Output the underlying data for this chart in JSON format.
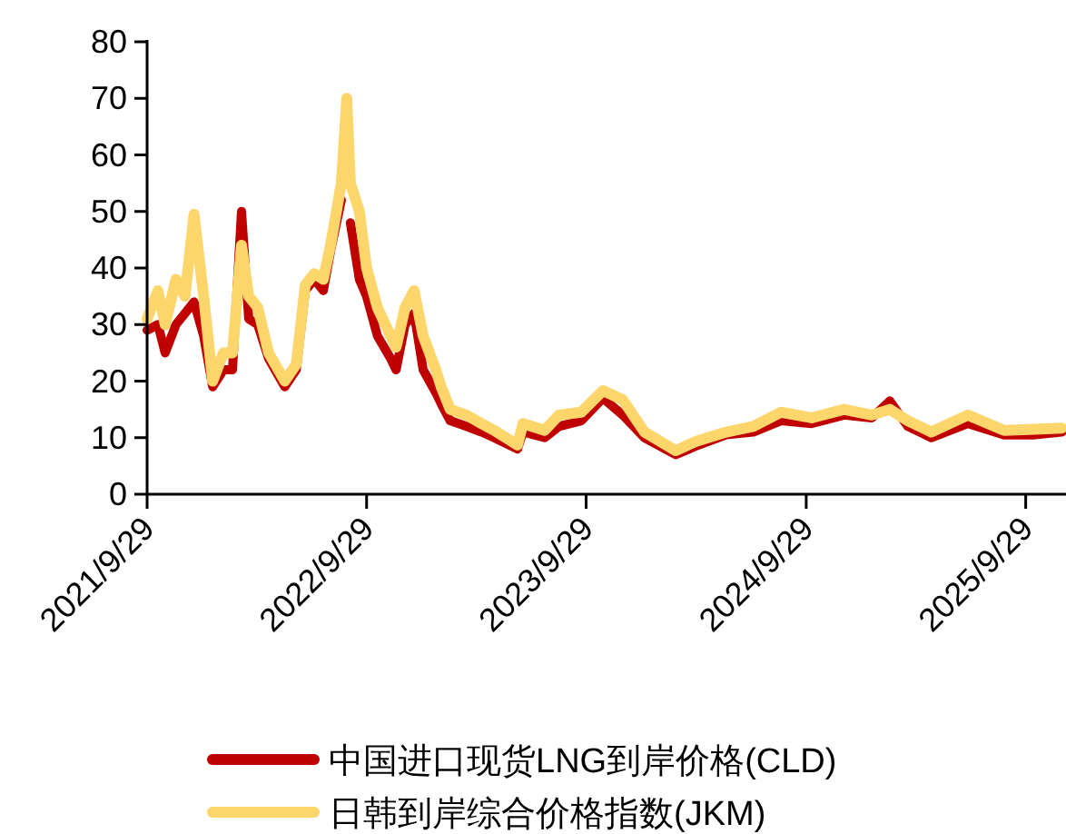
{
  "chart_data": {
    "type": "line",
    "legend": "bottom",
    "line_style": "solid",
    "marker": "none",
    "grid": false,
    "x": [
      "2021-09-29",
      "2021-10-17",
      "2021-10-29",
      "2021-11-16",
      "2021-12-01",
      "2021-12-16",
      "2022-01-01",
      "2022-01-16",
      "2022-02-03",
      "2022-02-18",
      "2022-03-05",
      "2022-03-17",
      "2022-04-01",
      "2022-04-19",
      "2022-05-16",
      "2022-06-04",
      "2022-06-19",
      "2022-07-04",
      "2022-07-19",
      "2022-07-31",
      "2022-08-18",
      "2022-08-27",
      "2022-09-02",
      "2022-09-17",
      "2022-09-29",
      "2022-10-17",
      "2022-11-08",
      "2022-11-17",
      "2022-12-02",
      "2022-12-17",
      "2023-01-01",
      "2023-01-22",
      "2023-01-31",
      "2023-02-15",
      "2023-03-14",
      "2023-04-08",
      "2023-04-29",
      "2023-06-07",
      "2023-06-16",
      "2023-07-22",
      "2023-08-15",
      "2023-09-21",
      "2023-10-27",
      "2023-11-29",
      "2024-01-04",
      "2024-02-25",
      "2024-03-29",
      "2024-05-19",
      "2024-07-03",
      "2024-08-18",
      "2024-10-08",
      "2024-12-01",
      "2025-01-16",
      "2025-02-15",
      "2025-03-17",
      "2025-04-25",
      "2025-06-25",
      "2025-08-24",
      "2025-10-14",
      "2025-11-28"
    ],
    "series": [
      {
        "name": "中国进口现货LNG到岸价格(CLD)",
        "color": "#c00000",
        "values": [
          29,
          30,
          25,
          30,
          32,
          34,
          28,
          19,
          22,
          22,
          50,
          31,
          30,
          24,
          19,
          22,
          36,
          38,
          36,
          43,
          52,
          null,
          48,
          38,
          35,
          28,
          24,
          22,
          30,
          32,
          22,
          18,
          16,
          13,
          12,
          11,
          10,
          8,
          11,
          10,
          12,
          13,
          17,
          14,
          10,
          7,
          8.5,
          10.5,
          11,
          13,
          12.5,
          14,
          13.5,
          16.5,
          12,
          10,
          12.5,
          10.5,
          10.5,
          11
        ]
      },
      {
        "name": "日韩到岸综合价格指数(JKM)",
        "color": "#fcd66a",
        "values": [
          31,
          36,
          30,
          38,
          35,
          49.5,
          35,
          20,
          25,
          25,
          44,
          35,
          33,
          25,
          20,
          23,
          37,
          39,
          38,
          44,
          55,
          70,
          55,
          50,
          40,
          33,
          28,
          26,
          33,
          36,
          28,
          22,
          19,
          15,
          14,
          12.5,
          11.3,
          8.7,
          12.5,
          11.3,
          14,
          14.5,
          18.3,
          16.7,
          11,
          7.7,
          9.3,
          11,
          12,
          14.5,
          13.5,
          15,
          14,
          15,
          13,
          11,
          14,
          11.3,
          11.5,
          11.7
        ]
      }
    ],
    "xlim": [
      "2021-09-29",
      "2025-12-05"
    ],
    "xticks": [
      {
        "value": "2021-09-29",
        "label": "2021/9/29"
      },
      {
        "value": "2022-09-29",
        "label": "2022/9/29"
      },
      {
        "value": "2023-09-29",
        "label": "2023/9/29"
      },
      {
        "value": "2024-09-29",
        "label": "2024/9/29"
      },
      {
        "value": "2025-09-29",
        "label": "2025/9/29"
      }
    ],
    "ylim": [
      0,
      80
    ],
    "yticks": [
      0,
      10,
      20,
      30,
      40,
      50,
      60,
      70,
      80
    ]
  }
}
